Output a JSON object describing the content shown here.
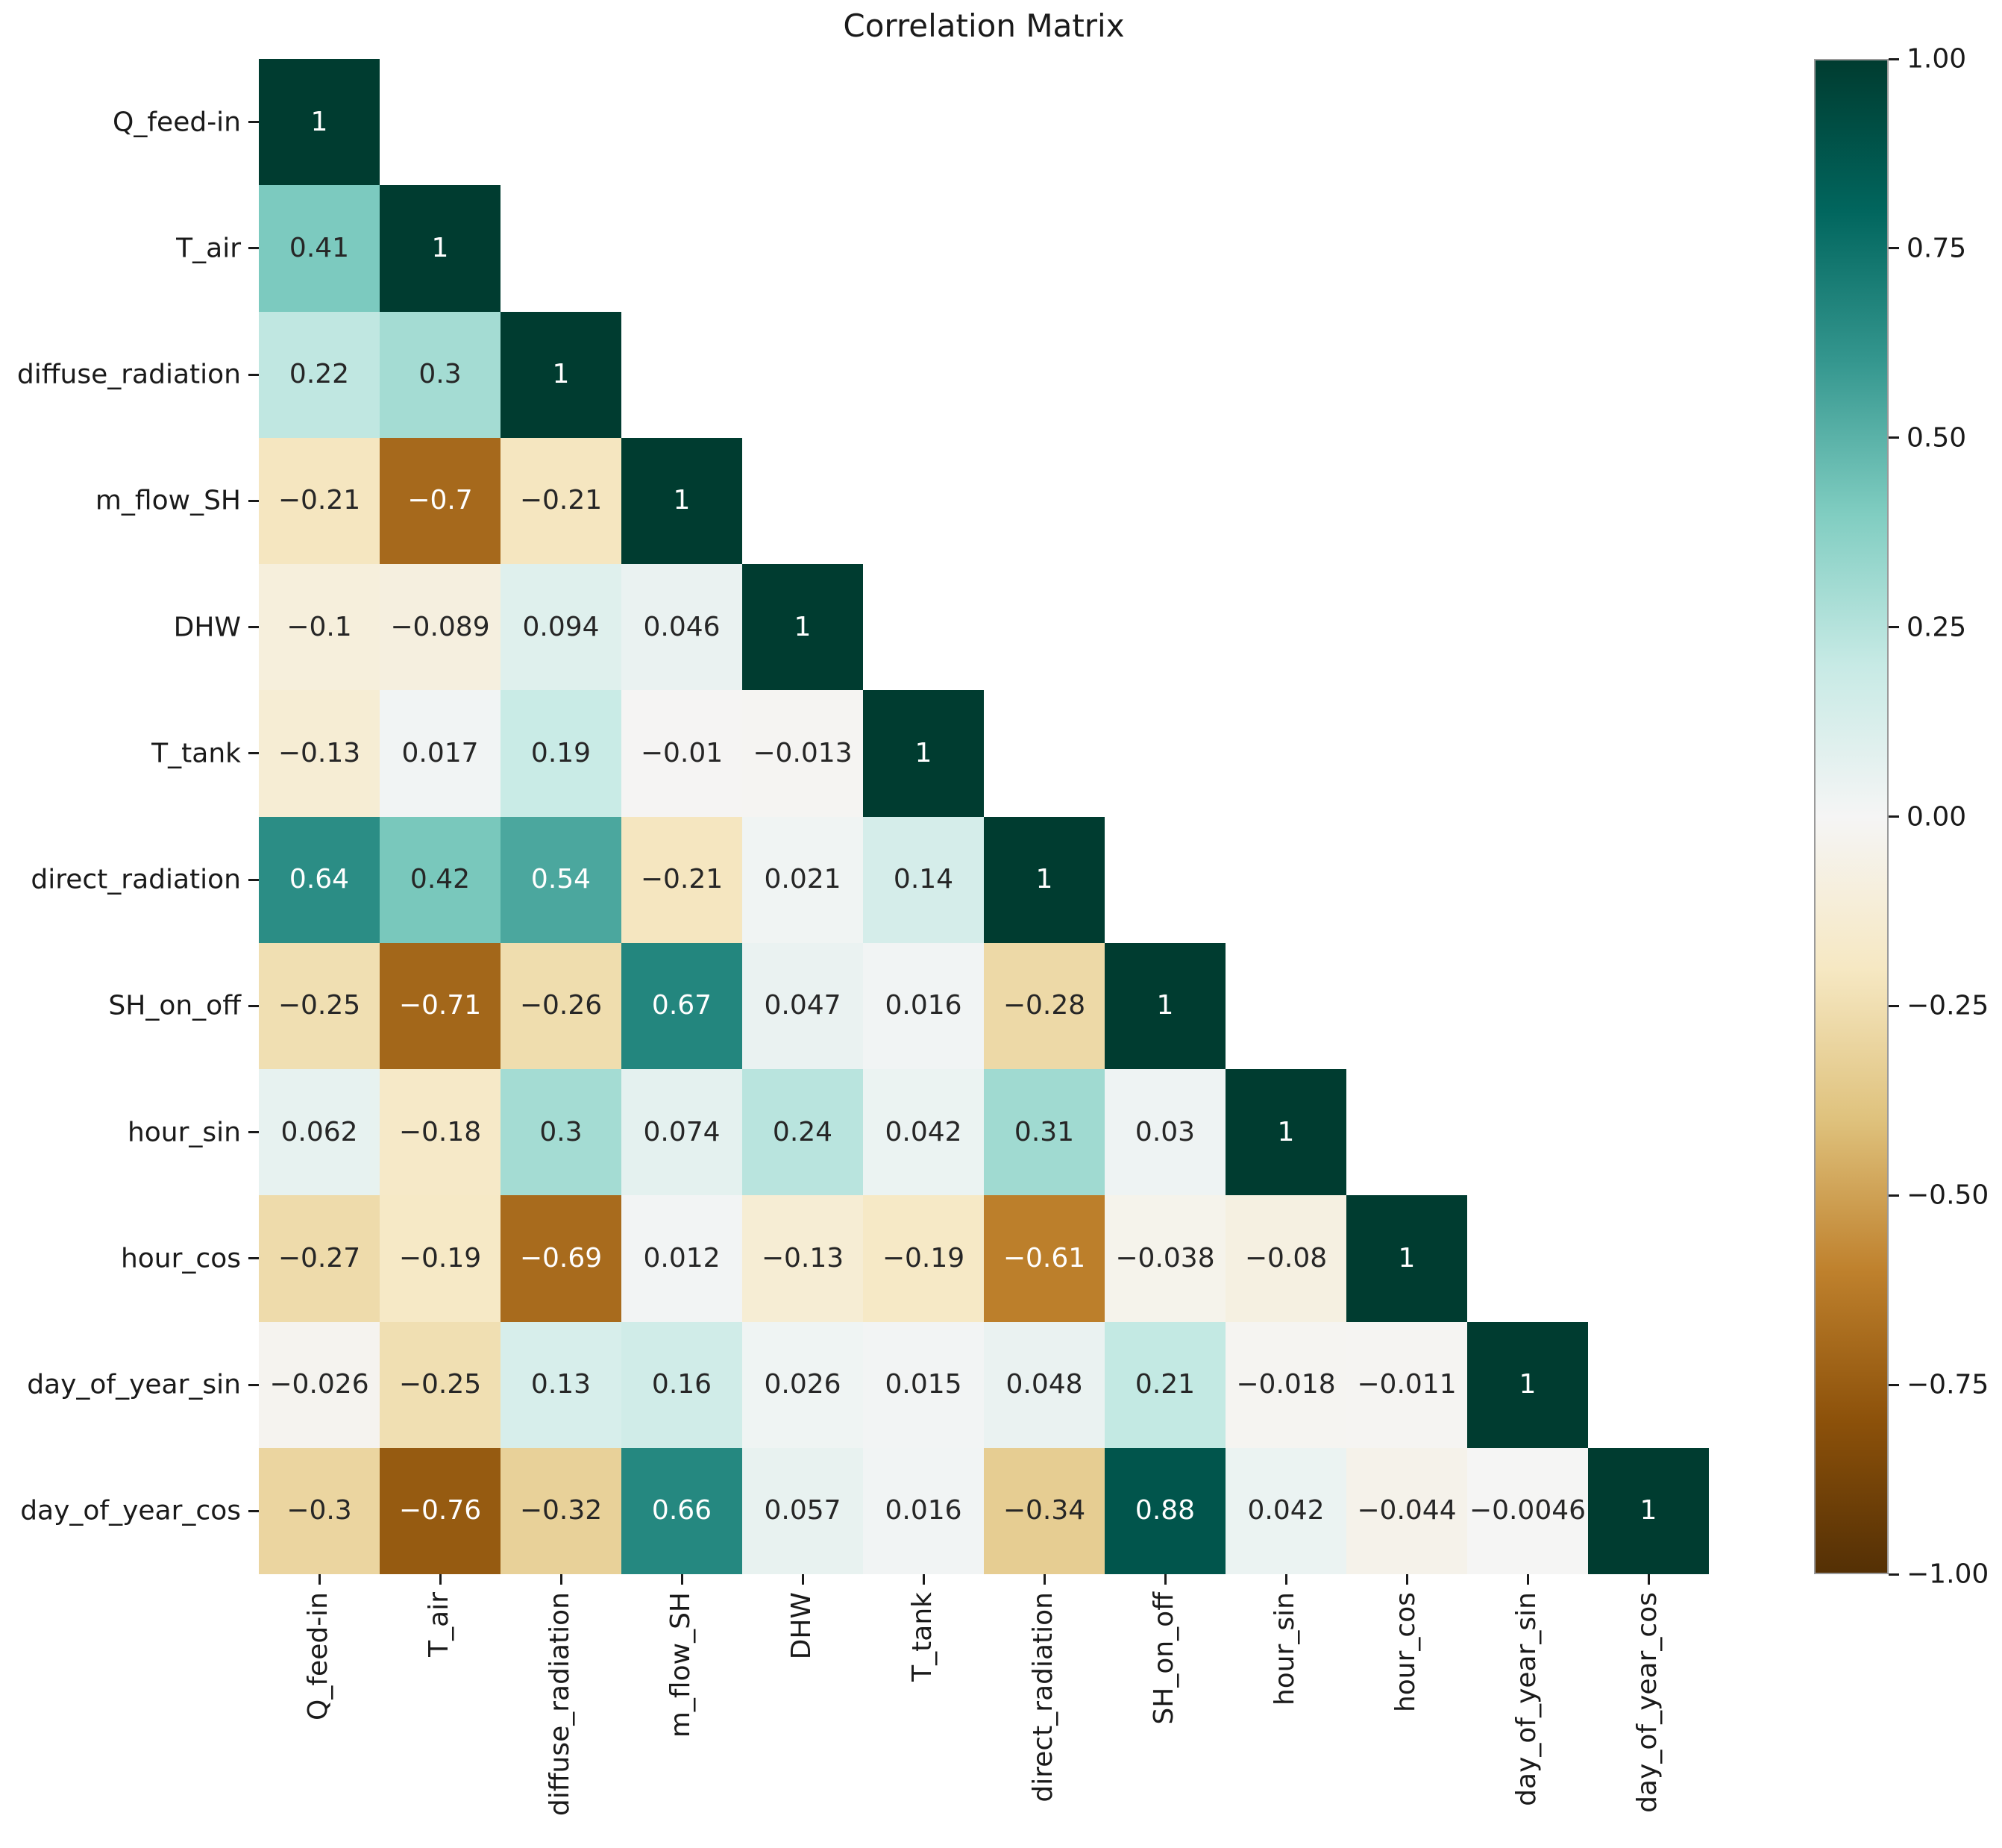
{
  "title": "Correlation Matrix",
  "chart_data": {
    "type": "heatmap",
    "subtype": "lower-triangle-correlation-matrix",
    "title": "Correlation Matrix",
    "categories": [
      "Q_feed-in",
      "T_air",
      "diffuse_radiation",
      "m_flow_SH",
      "DHW",
      "T_tank",
      "direct_radiation",
      "SH_on_off",
      "hour_sin",
      "hour_cos",
      "day_of_year_sin",
      "day_of_year_cos"
    ],
    "matrix_lower_triangle": [
      [
        1
      ],
      [
        0.41,
        1
      ],
      [
        0.22,
        0.3,
        1
      ],
      [
        -0.21,
        -0.7,
        -0.21,
        1
      ],
      [
        -0.1,
        -0.089,
        0.094,
        0.046,
        1
      ],
      [
        -0.13,
        0.017,
        0.19,
        -0.01,
        -0.013,
        1
      ],
      [
        0.64,
        0.42,
        0.54,
        -0.21,
        0.021,
        0.14,
        1
      ],
      [
        -0.25,
        -0.71,
        -0.26,
        0.67,
        0.047,
        0.016,
        -0.28,
        1
      ],
      [
        0.062,
        -0.18,
        0.3,
        0.074,
        0.24,
        0.042,
        0.31,
        0.03,
        1
      ],
      [
        -0.27,
        -0.19,
        -0.69,
        0.012,
        -0.13,
        -0.19,
        -0.61,
        -0.038,
        -0.08,
        1
      ],
      [
        -0.026,
        -0.25,
        0.13,
        0.16,
        0.026,
        0.015,
        0.048,
        0.21,
        -0.018,
        -0.011,
        1
      ],
      [
        -0.3,
        -0.76,
        -0.32,
        0.66,
        0.057,
        0.016,
        -0.34,
        0.88,
        0.042,
        -0.044,
        -0.0046,
        1
      ]
    ],
    "vmin": -1,
    "vmax": 1,
    "grid": false,
    "colormap": {
      "name": "BrBG",
      "anchors": [
        "#543005",
        "#8c510a",
        "#bf812d",
        "#dfc27d",
        "#f6e8c3",
        "#f5f5f5",
        "#c7eae5",
        "#80cdc1",
        "#35978f",
        "#01665e",
        "#003c30"
      ]
    },
    "colorbar": {
      "position": "right",
      "tick_values": [
        1.0,
        0.75,
        0.5,
        0.25,
        0.0,
        -0.25,
        -0.5,
        -0.75,
        -1.0
      ],
      "tick_labels": [
        "1.00",
        "0.75",
        "0.50",
        "0.25",
        "0.00",
        "−0.25",
        "−0.50",
        "−0.75",
        "−1.00"
      ]
    },
    "annotation_text_colors": {
      "light": "#ffffff",
      "dark": "#262626"
    }
  },
  "layout_note_colors": {
    "background": "#ffffff",
    "max_positive_cell": "#003c30",
    "max_negative_cell_seen": "#a0611d"
  }
}
